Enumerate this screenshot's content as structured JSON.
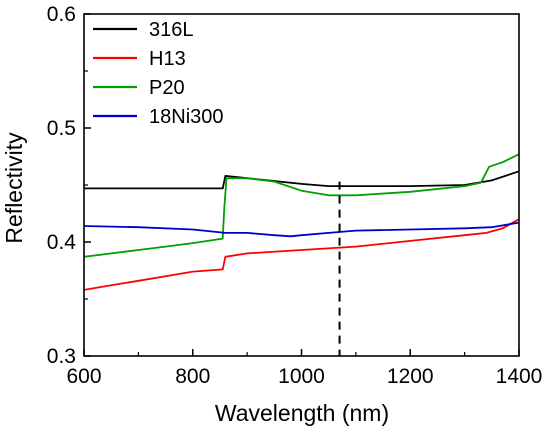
{
  "chart_data": {
    "type": "line",
    "xlabel": "Wavelength (nm)",
    "ylabel": "Reflectivity",
    "xlim": [
      600,
      1400
    ],
    "ylim": [
      0.3,
      0.6
    ],
    "xticks": [
      600,
      800,
      1000,
      1200,
      1400
    ],
    "xtick_labels": [
      "600",
      "800",
      "1000",
      "1200",
      "1400"
    ],
    "yticks": [
      0.3,
      0.4,
      0.5,
      0.6
    ],
    "ytick_labels": [
      "0.3",
      "0.4",
      "0.5",
      "0.6"
    ],
    "legend_position": "top-left",
    "grid": false,
    "reference_line": {
      "x": 1070,
      "style": "dashed"
    },
    "series": [
      {
        "name": "316L",
        "color": "#000000",
        "x": [
          600,
          700,
          800,
          855,
          860,
          900,
          1000,
          1050,
          1100,
          1200,
          1300,
          1350,
          1400
        ],
        "y": [
          0.447,
          0.447,
          0.447,
          0.447,
          0.458,
          0.456,
          0.451,
          0.449,
          0.449,
          0.449,
          0.45,
          0.454,
          0.462
        ]
      },
      {
        "name": "H13",
        "color": "#ff0000",
        "x": [
          600,
          650,
          700,
          750,
          800,
          855,
          860,
          900,
          1000,
          1100,
          1200,
          1300,
          1340,
          1370,
          1400
        ],
        "y": [
          0.358,
          0.362,
          0.366,
          0.37,
          0.374,
          0.376,
          0.387,
          0.39,
          0.393,
          0.396,
          0.401,
          0.406,
          0.408,
          0.412,
          0.42
        ]
      },
      {
        "name": "P20",
        "color": "#00a000",
        "x": [
          600,
          650,
          700,
          750,
          800,
          855,
          858,
          862,
          900,
          950,
          1000,
          1050,
          1100,
          1200,
          1300,
          1330,
          1345,
          1370,
          1400
        ],
        "y": [
          0.387,
          0.39,
          0.393,
          0.396,
          0.399,
          0.403,
          0.43,
          0.456,
          0.456,
          0.453,
          0.445,
          0.441,
          0.441,
          0.444,
          0.449,
          0.452,
          0.466,
          0.47,
          0.477
        ]
      },
      {
        "name": "18Ni300",
        "color": "#0000cc",
        "x": [
          600,
          700,
          800,
          860,
          900,
          950,
          980,
          1000,
          1050,
          1100,
          1200,
          1300,
          1350,
          1400
        ],
        "y": [
          0.414,
          0.413,
          0.411,
          0.408,
          0.408,
          0.406,
          0.405,
          0.406,
          0.408,
          0.41,
          0.411,
          0.412,
          0.413,
          0.417
        ]
      }
    ]
  }
}
